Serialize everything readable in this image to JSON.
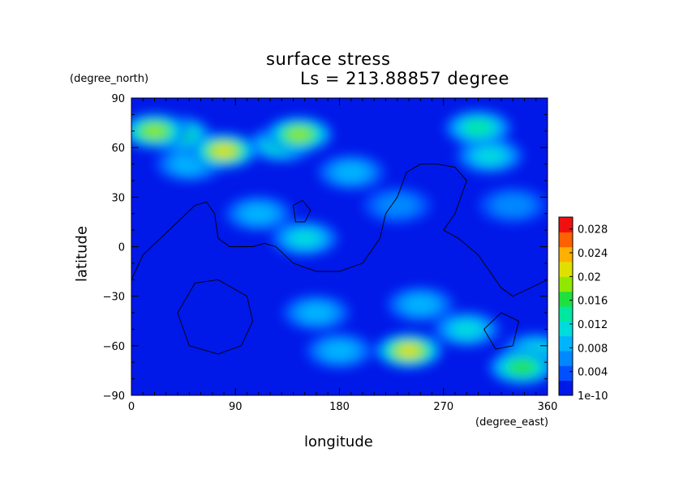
{
  "chart_data": {
    "type": "heatmap",
    "title": "surface stress",
    "subtitle": "Ls = 213.88857 degree",
    "xlabel": "longitude",
    "ylabel": "latitude",
    "xunit": "(degree_east)",
    "yunit": "(degree_north)",
    "xlim": [
      0,
      360
    ],
    "ylim": [
      -90,
      90
    ],
    "xticks": [
      "0",
      "90",
      "180",
      "270",
      "360"
    ],
    "yticks": [
      "90",
      "60",
      "30",
      "0",
      "−30",
      "−60",
      "−90"
    ],
    "colorbar": {
      "min": 1e-10,
      "max": 0.03,
      "ticks": [
        "0.028",
        "0.024",
        "0.02",
        "0.016",
        "0.012",
        "0.008",
        "0.004",
        "1e-10"
      ],
      "tick_values": [
        0.028,
        0.024,
        0.02,
        0.016,
        0.012,
        0.008,
        0.004,
        1e-10
      ],
      "colors": [
        "#0018e8",
        "#0050ff",
        "#0088ff",
        "#00b4ff",
        "#00dcdc",
        "#00e8a0",
        "#20e040",
        "#90e800",
        "#e0e000",
        "#ffb000",
        "#ff6000",
        "#f01010"
      ]
    },
    "background_value": 0.002,
    "hotspots": [
      {
        "lon": 20,
        "lat": 70,
        "value": 0.02
      },
      {
        "lon": 40,
        "lat": 68,
        "value": 0.016
      },
      {
        "lon": 80,
        "lat": 58,
        "value": 0.022
      },
      {
        "lon": 145,
        "lat": 68,
        "value": 0.018
      },
      {
        "lon": 130,
        "lat": 62,
        "value": 0.014
      },
      {
        "lon": 240,
        "lat": -63,
        "value": 0.022
      },
      {
        "lon": 338,
        "lat": -73,
        "value": 0.016
      },
      {
        "lon": 300,
        "lat": 72,
        "value": 0.013
      },
      {
        "lon": 310,
        "lat": 55,
        "value": 0.011
      },
      {
        "lon": 150,
        "lat": 5,
        "value": 0.011
      },
      {
        "lon": 110,
        "lat": 20,
        "value": 0.008
      },
      {
        "lon": 160,
        "lat": -40,
        "value": 0.009
      },
      {
        "lon": 250,
        "lat": -35,
        "value": 0.009
      },
      {
        "lon": 290,
        "lat": -50,
        "value": 0.012
      },
      {
        "lon": 50,
        "lat": 50,
        "value": 0.008
      },
      {
        "lon": 190,
        "lat": 45,
        "value": 0.009
      },
      {
        "lon": 350,
        "lat": -63,
        "value": 0.012
      },
      {
        "lon": 180,
        "lat": -63,
        "value": 0.008
      },
      {
        "lon": 330,
        "lat": 25,
        "value": 0.007
      },
      {
        "lon": 230,
        "lat": 25,
        "value": 0.007
      }
    ],
    "topography_contours": [
      [
        [
          0,
          -20
        ],
        [
          10,
          -5
        ],
        [
          25,
          5
        ],
        [
          40,
          15
        ],
        [
          55,
          25
        ],
        [
          65,
          27
        ],
        [
          72,
          20
        ],
        [
          75,
          5
        ],
        [
          85,
          0
        ],
        [
          105,
          0
        ],
        [
          115,
          2
        ],
        [
          125,
          0
        ],
        [
          140,
          -10
        ],
        [
          160,
          -15
        ],
        [
          180,
          -15
        ],
        [
          200,
          -10
        ],
        [
          215,
          5
        ],
        [
          220,
          20
        ],
        [
          230,
          30
        ],
        [
          238,
          45
        ],
        [
          250,
          50
        ],
        [
          265,
          50
        ],
        [
          280,
          48
        ],
        [
          290,
          40
        ],
        [
          280,
          20
        ],
        [
          270,
          10
        ],
        [
          283,
          5
        ],
        [
          300,
          -5
        ],
        [
          310,
          -15
        ],
        [
          320,
          -25
        ],
        [
          330,
          -30
        ],
        [
          345,
          -25
        ],
        [
          360,
          -20
        ]
      ],
      [
        [
          140,
          25
        ],
        [
          148,
          28
        ],
        [
          155,
          22
        ],
        [
          150,
          15
        ],
        [
          142,
          15
        ],
        [
          140,
          25
        ]
      ],
      [
        [
          40,
          -40
        ],
        [
          55,
          -22
        ],
        [
          75,
          -20
        ],
        [
          100,
          -30
        ],
        [
          105,
          -45
        ],
        [
          95,
          -60
        ],
        [
          75,
          -65
        ],
        [
          50,
          -60
        ],
        [
          40,
          -40
        ]
      ],
      [
        [
          305,
          -50
        ],
        [
          320,
          -40
        ],
        [
          335,
          -45
        ],
        [
          330,
          -60
        ],
        [
          315,
          -62
        ],
        [
          305,
          -50
        ]
      ]
    ]
  }
}
